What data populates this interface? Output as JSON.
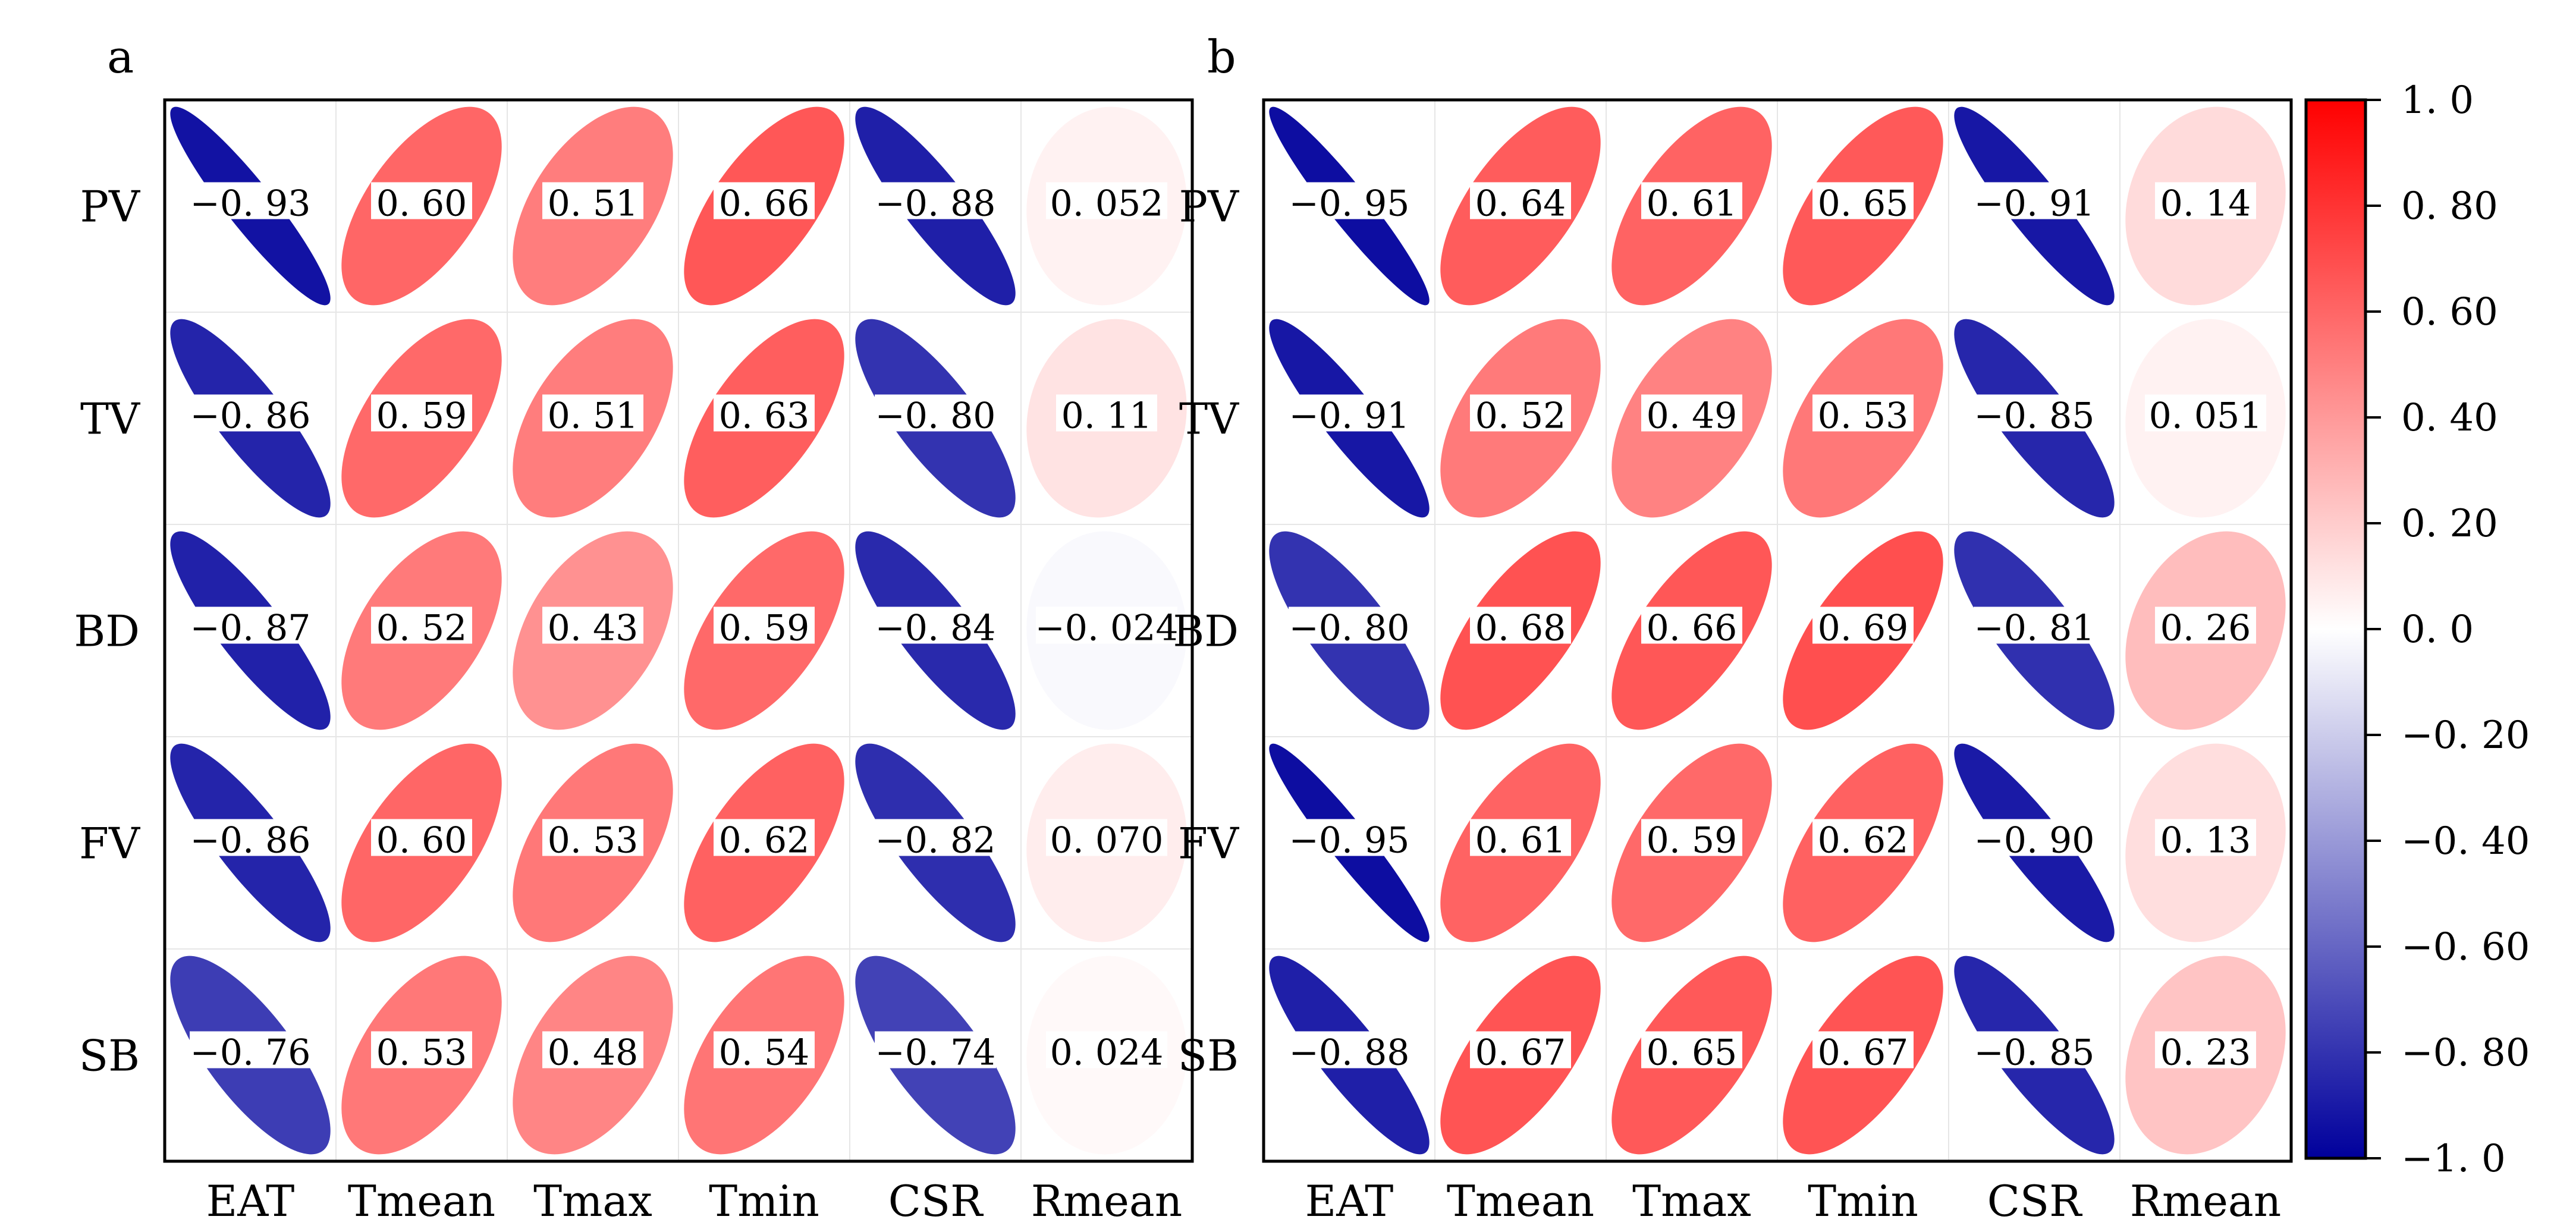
{
  "chart_data": [
    {
      "type": "correlation-ellipse-matrix",
      "panel": "a",
      "rows": [
        "PV",
        "TV",
        "BD",
        "FV",
        "SB"
      ],
      "columns": [
        "EAT",
        "Tmean",
        "Tmax",
        "Tmin",
        "CSR",
        "Rmean"
      ],
      "values": [
        [
          -0.93,
          0.6,
          0.51,
          0.66,
          -0.88,
          0.052
        ],
        [
          -0.86,
          0.59,
          0.51,
          0.63,
          -0.8,
          0.11
        ],
        [
          -0.87,
          0.52,
          0.43,
          0.59,
          -0.84,
          -0.024
        ],
        [
          -0.86,
          0.6,
          0.53,
          0.62,
          -0.82,
          0.07
        ],
        [
          -0.76,
          0.53,
          0.48,
          0.54,
          -0.74,
          0.024
        ]
      ],
      "labels": [
        [
          "−0. 93",
          "0. 60",
          "0. 51",
          "0. 66",
          "−0. 88",
          "0. 052"
        ],
        [
          "−0. 86",
          "0. 59",
          "0. 51",
          "0. 63",
          "−0. 80",
          "0. 11"
        ],
        [
          "−0. 87",
          "0. 52",
          "0. 43",
          "0. 59",
          "−0. 84",
          "−0. 024"
        ],
        [
          "−0. 86",
          "0. 60",
          "0. 53",
          "0. 62",
          "−0. 82",
          "0. 070"
        ],
        [
          "−0. 76",
          "0. 53",
          "0. 48",
          "0. 54",
          "−0. 74",
          "0. 024"
        ]
      ]
    },
    {
      "type": "correlation-ellipse-matrix",
      "panel": "b",
      "rows": [
        "PV",
        "TV",
        "BD",
        "FV",
        "SB"
      ],
      "columns": [
        "EAT",
        "Tmean",
        "Tmax",
        "Tmin",
        "CSR",
        "Rmean"
      ],
      "values": [
        [
          -0.95,
          0.64,
          0.61,
          0.65,
          -0.91,
          0.14
        ],
        [
          -0.91,
          0.52,
          0.49,
          0.53,
          -0.85,
          0.051
        ],
        [
          -0.8,
          0.68,
          0.66,
          0.69,
          -0.81,
          0.26
        ],
        [
          -0.95,
          0.61,
          0.59,
          0.62,
          -0.9,
          0.13
        ],
        [
          -0.88,
          0.67,
          0.65,
          0.67,
          -0.85,
          0.23
        ]
      ],
      "labels": [
        [
          "−0. 95",
          "0. 64",
          "0. 61",
          "0. 65",
          "−0. 91",
          "0. 14"
        ],
        [
          "−0. 91",
          "0. 52",
          "0. 49",
          "0. 53",
          "−0. 85",
          "0. 051"
        ],
        [
          "−0. 80",
          "0. 68",
          "0. 66",
          "0. 69",
          "−0. 81",
          "0. 26"
        ],
        [
          "−0. 95",
          "0. 61",
          "0. 59",
          "0. 62",
          "−0. 90",
          "0. 13"
        ],
        [
          "−0. 88",
          "0. 67",
          "0. 65",
          "0. 67",
          "−0. 85",
          "0. 23"
        ]
      ]
    }
  ],
  "colorbar": {
    "range": [
      -1.0,
      1.0
    ],
    "ticks": [
      1.0,
      0.8,
      0.6,
      0.4,
      0.2,
      0.0,
      -0.2,
      -0.4,
      -0.6,
      -0.8,
      -1.0
    ],
    "tick_labels": [
      "1. 0",
      "0. 80",
      "0. 60",
      "0. 40",
      "0. 20",
      "0. 0",
      "−0. 20",
      "−0. 40",
      "−0. 60",
      "−0. 80",
      "−1. 0"
    ],
    "colors": {
      "negative": "#00009c",
      "zero": "#ffffff",
      "positive": "#ff0000"
    }
  }
}
